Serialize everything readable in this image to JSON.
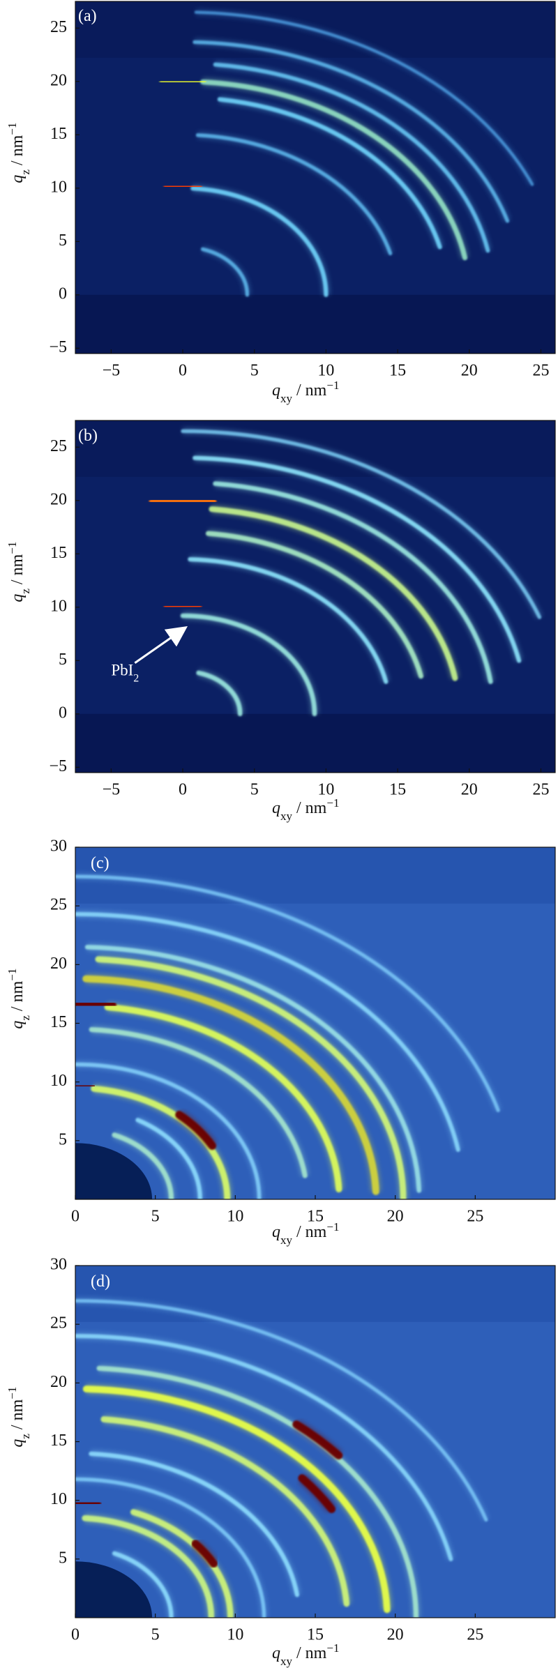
{
  "chart_data": [
    {
      "type": "heatmap",
      "panel_label": "(a)",
      "xlabel": {
        "base": "q",
        "sub": "xy",
        "suffix": " / nm",
        "sup": "−1"
      },
      "ylabel": {
        "base": "q",
        "sub": "z",
        "suffix": " / nm",
        "sup": "−1"
      },
      "xlim": [
        -7.5,
        26
      ],
      "ylim": [
        -5.5,
        27.5
      ],
      "x_ticks": [
        -5,
        0,
        5,
        10,
        15,
        20,
        25
      ],
      "y_ticks": [
        -5,
        0,
        5,
        10,
        15,
        20,
        25
      ],
      "colors": {
        "background": "#0b2064",
        "background_edge": "#06164f",
        "low": "#1d4fb8",
        "mid": "#72d8ff",
        "high": "#f0ff2a",
        "peak": "#ff3c00"
      },
      "rings": [
        {
          "q": 4.5,
          "theta_start": 0,
          "theta_end": 72,
          "intensity": 0.35
        },
        {
          "q": 10.0,
          "theta_start": 0,
          "theta_end": 86,
          "intensity": 0.45
        },
        {
          "q": 10.2,
          "theta_start": 84,
          "theta_end": 96,
          "intensity": 1.0
        },
        {
          "q": 15.0,
          "theta_start": 15,
          "theta_end": 86,
          "intensity": 0.35
        },
        {
          "q": 18.5,
          "theta_start": 14,
          "theta_end": 82,
          "intensity": 0.45
        },
        {
          "q": 20.0,
          "theta_start": 10,
          "theta_end": 86,
          "intensity": 0.55
        },
        {
          "q": 20.0,
          "theta_start": 86,
          "theta_end": 94,
          "intensity": 0.82
        },
        {
          "q": 21.7,
          "theta_start": 11,
          "theta_end": 84,
          "intensity": 0.4
        },
        {
          "q": 23.7,
          "theta_start": 17,
          "theta_end": 88,
          "intensity": 0.35
        },
        {
          "q": 26.5,
          "theta_start": 23,
          "theta_end": 88,
          "intensity": 0.25
        }
      ]
    },
    {
      "type": "heatmap",
      "panel_label": "(b)",
      "xlabel": {
        "base": "q",
        "sub": "xy",
        "suffix": " / nm",
        "sup": "−1"
      },
      "ylabel": {
        "base": "q",
        "sub": "z",
        "suffix": " / nm",
        "sup": "−1"
      },
      "xlim": [
        -7.5,
        26
      ],
      "ylim": [
        -5.5,
        27.5
      ],
      "x_ticks": [
        -5,
        0,
        5,
        10,
        15,
        20,
        25
      ],
      "y_ticks": [
        -5,
        0,
        5,
        10,
        15,
        20,
        25
      ],
      "annotation": {
        "text": "PbI",
        "sub": "2",
        "arrow_to": [
          0.1,
          8.0
        ],
        "text_at": [
          -5.0,
          3.6
        ]
      },
      "colors": {
        "background": "#0b2064",
        "background_edge": "#06164f",
        "low": "#2b64c9",
        "mid": "#8fe8ff",
        "high": "#f4ff2c",
        "peak": "#ff3c00"
      },
      "rings": [
        {
          "q": 4.0,
          "theta_start": 0,
          "theta_end": 74,
          "intensity": 0.5
        },
        {
          "q": 9.2,
          "theta_start": 0,
          "theta_end": 90,
          "intensity": 0.5
        },
        {
          "q": 10.1,
          "theta_start": 84,
          "theta_end": 96,
          "intensity": 1.0
        },
        {
          "q": 14.5,
          "theta_start": 12,
          "theta_end": 88,
          "intensity": 0.45
        },
        {
          "q": 17.0,
          "theta_start": 12,
          "theta_end": 84,
          "intensity": 0.55
        },
        {
          "q": 19.3,
          "theta_start": 10,
          "theta_end": 84,
          "intensity": 0.65
        },
        {
          "q": 20.0,
          "theta_start": 84,
          "theta_end": 96,
          "intensity": 0.95
        },
        {
          "q": 21.7,
          "theta_start": 8,
          "theta_end": 84,
          "intensity": 0.5
        },
        {
          "q": 24.0,
          "theta_start": 12,
          "theta_end": 88,
          "intensity": 0.45
        },
        {
          "q": 26.5,
          "theta_start": 20,
          "theta_end": 90,
          "intensity": 0.35
        }
      ]
    },
    {
      "type": "heatmap",
      "panel_label": "(c)",
      "xlabel": {
        "base": "q",
        "sub": "xy",
        "suffix": " / nm",
        "sup": "−1"
      },
      "ylabel": {
        "base": "q",
        "sub": "z",
        "suffix": " / nm",
        "sup": "−1"
      },
      "xlim": [
        0,
        30
      ],
      "ylim": [
        0,
        30
      ],
      "x_ticks": [
        0,
        5,
        10,
        15,
        20,
        25
      ],
      "y_ticks": [
        5,
        10,
        15,
        20,
        25,
        30
      ],
      "colors": {
        "background": "#2e5fb9",
        "background_edge": "#1d4aa4",
        "low": "#4d8de8",
        "mid": "#8fdfff",
        "high": "#e8ff46",
        "peak": "#6a0000"
      },
      "rings": [
        {
          "q": 6.0,
          "theta_start": 0,
          "theta_end": 66,
          "intensity": 0.55
        },
        {
          "q": 7.8,
          "theta_start": 0,
          "theta_end": 60,
          "intensity": 0.45
        },
        {
          "q": 9.5,
          "theta_start": 0,
          "theta_end": 83,
          "intensity": 0.75
        },
        {
          "q": 9.7,
          "theta_start": 28,
          "theta_end": 48,
          "intensity": 1.0
        },
        {
          "q": 9.7,
          "theta_start": 84,
          "theta_end": 90,
          "intensity": 1.0
        },
        {
          "q": 11.5,
          "theta_start": 0,
          "theta_end": 90,
          "intensity": 0.38
        },
        {
          "q": 14.5,
          "theta_start": 8,
          "theta_end": 86,
          "intensity": 0.55
        },
        {
          "q": 16.5,
          "theta_start": 3,
          "theta_end": 83,
          "intensity": 0.78
        },
        {
          "q": 16.7,
          "theta_start": 82,
          "theta_end": 90,
          "intensity": 1.0
        },
        {
          "q": 18.8,
          "theta_start": 2,
          "theta_end": 88,
          "intensity": 0.85
        },
        {
          "q": 20.5,
          "theta_start": 0,
          "theta_end": 86,
          "intensity": 0.72
        },
        {
          "q": 21.5,
          "theta_start": 2,
          "theta_end": 88,
          "intensity": 0.5
        },
        {
          "q": 24.3,
          "theta_start": 10,
          "theta_end": 90,
          "intensity": 0.42
        },
        {
          "q": 27.5,
          "theta_start": 16,
          "theta_end": 90,
          "intensity": 0.32
        }
      ]
    },
    {
      "type": "heatmap",
      "panel_label": "(d)",
      "xlabel": {
        "base": "q",
        "sub": "xy",
        "suffix": " / nm",
        "sup": "−1"
      },
      "ylabel": {
        "base": "q",
        "sub": "z",
        "suffix": " / nm",
        "sup": "−1"
      },
      "xlim": [
        0,
        30
      ],
      "ylim": [
        0,
        30
      ],
      "x_ticks": [
        0,
        5,
        10,
        15,
        20,
        25
      ],
      "y_ticks": [
        5,
        10,
        15,
        20,
        25,
        30
      ],
      "colors": {
        "background": "#2e5fb9",
        "background_edge": "#1d4aa4",
        "low": "#4d8de8",
        "mid": "#8fdfff",
        "high": "#e8ff46",
        "peak": "#6a0000"
      },
      "rings": [
        {
          "q": 6.0,
          "theta_start": 0,
          "theta_end": 66,
          "intensity": 0.45
        },
        {
          "q": 8.5,
          "theta_start": 0,
          "theta_end": 86,
          "intensity": 0.7
        },
        {
          "q": 9.7,
          "theta_start": 0,
          "theta_end": 68,
          "intensity": 0.72
        },
        {
          "q": 9.8,
          "theta_start": 28,
          "theta_end": 40,
          "intensity": 1.0
        },
        {
          "q": 9.8,
          "theta_start": 82,
          "theta_end": 90,
          "intensity": 1.0
        },
        {
          "q": 11.8,
          "theta_start": 0,
          "theta_end": 90,
          "intensity": 0.35
        },
        {
          "q": 14.0,
          "theta_start": 8,
          "theta_end": 86,
          "intensity": 0.45
        },
        {
          "q": 17.0,
          "theta_start": 4,
          "theta_end": 84,
          "intensity": 0.72
        },
        {
          "q": 18.5,
          "theta_start": 30,
          "theta_end": 40,
          "intensity": 1.0
        },
        {
          "q": 19.5,
          "theta_start": 2,
          "theta_end": 88,
          "intensity": 0.82
        },
        {
          "q": 21.3,
          "theta_start": 0,
          "theta_end": 86,
          "intensity": 0.55
        },
        {
          "q": 21.5,
          "theta_start": 40,
          "theta_end": 50,
          "intensity": 1.0
        },
        {
          "q": 24.0,
          "theta_start": 12,
          "theta_end": 90,
          "intensity": 0.42
        },
        {
          "q": 27.0,
          "theta_start": 18,
          "theta_end": 90,
          "intensity": 0.32
        }
      ]
    }
  ]
}
